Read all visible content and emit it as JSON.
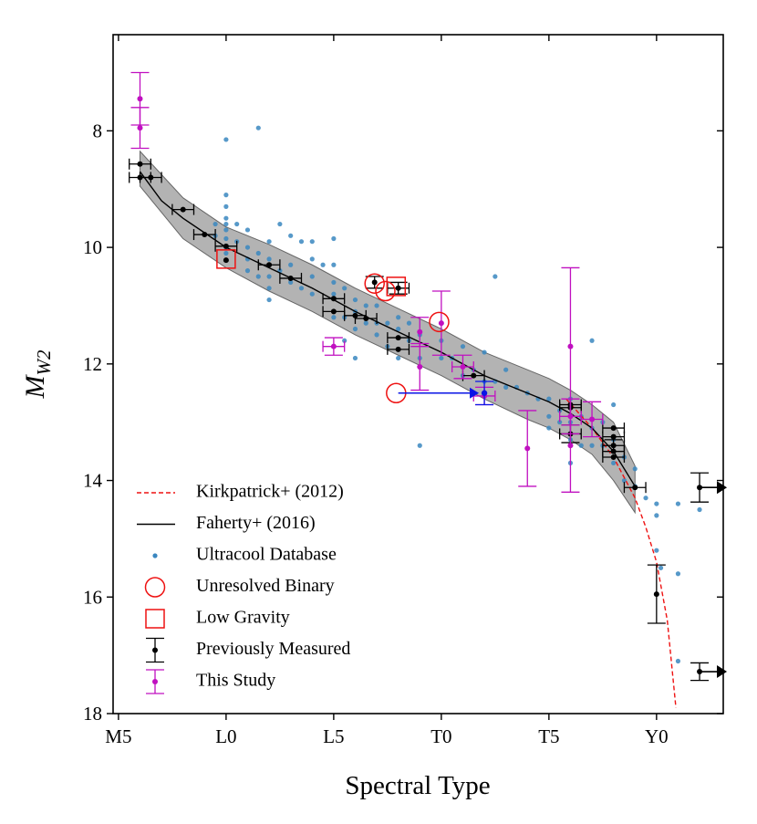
{
  "chart_data": {
    "type": "scatter",
    "xlabel": "Spectral Type",
    "ylabel": {
      "text": "M",
      "sub": "W2"
    },
    "xlim": [
      4.75,
      33.1
    ],
    "ylim": [
      18,
      6.35
    ],
    "xticks": [
      {
        "value": 5,
        "label": "M5"
      },
      {
        "value": 10,
        "label": "L0"
      },
      {
        "value": 15,
        "label": "L5"
      },
      {
        "value": 20,
        "label": "T0"
      },
      {
        "value": 25,
        "label": "T5"
      },
      {
        "value": 30,
        "label": "Y0"
      }
    ],
    "yticks": [
      8,
      10,
      12,
      14,
      16,
      18
    ],
    "legend": "lower left",
    "band": {
      "color": "#999999",
      "x": [
        6,
        8,
        10,
        12,
        14,
        16,
        18,
        20,
        22,
        24,
        25,
        26,
        27,
        28,
        29
      ],
      "lower": [
        8.35,
        9.15,
        9.65,
        9.95,
        10.3,
        10.7,
        11.05,
        11.4,
        11.8,
        12.1,
        12.25,
        12.45,
        12.7,
        13.0,
        13.75
      ],
      "upper": [
        8.95,
        9.85,
        10.35,
        10.75,
        11.1,
        11.5,
        11.85,
        12.2,
        12.6,
        12.95,
        13.1,
        13.3,
        13.55,
        14.0,
        14.55
      ]
    },
    "series": [
      {
        "name": "Kirkpatrick+ (2012)",
        "kind": "line",
        "dashed": true,
        "color": "#ee1111",
        "x": [
          25.8,
          27,
          28,
          29,
          29.5,
          30,
          30.5,
          30.9
        ],
        "y": [
          12.6,
          13.1,
          13.6,
          14.3,
          14.8,
          15.4,
          16.4,
          17.9
        ]
      },
      {
        "name": "Faherty+ (2016)",
        "kind": "line",
        "dashed": false,
        "color": "#000000",
        "x": [
          6,
          7,
          8,
          9,
          10,
          12,
          14,
          16,
          18,
          20,
          22,
          24,
          25,
          26,
          27,
          28,
          29
        ],
        "y": [
          8.7,
          9.2,
          9.5,
          9.75,
          10.0,
          10.35,
          10.7,
          11.1,
          11.45,
          11.8,
          12.2,
          12.5,
          12.65,
          12.85,
          13.1,
          13.5,
          14.1
        ]
      },
      {
        "name": "Ultracool Database",
        "kind": "dots",
        "color": "#3a87c0",
        "x": [
          10,
          11.5,
          10,
          10,
          10,
          10,
          10,
          10,
          10,
          10,
          10.5,
          10.5,
          11,
          11,
          11,
          11,
          11.5,
          11.5,
          12,
          12,
          12,
          12,
          12,
          12.5,
          12.5,
          13,
          13,
          13,
          13.5,
          13.5,
          14,
          14,
          14,
          14,
          14.5,
          15,
          15,
          15,
          15,
          15,
          15.5,
          15.5,
          15.5,
          16,
          16,
          16,
          16,
          16.5,
          16.5,
          17,
          17,
          17,
          17.5,
          17.5,
          18,
          18,
          18,
          18.5,
          18.5,
          19,
          19,
          19,
          20,
          20,
          20.5,
          21,
          21,
          21.5,
          22,
          22,
          22.5,
          22.5,
          23,
          23,
          23.5,
          24,
          24.5,
          25,
          25,
          25,
          25.5,
          25.5,
          26,
          26,
          26,
          26,
          26.5,
          26.5,
          27,
          27,
          27,
          27.5,
          27.5,
          28,
          28,
          28,
          28.5,
          28.5,
          29,
          29,
          29.5,
          30,
          30,
          30,
          30.2,
          31,
          31,
          32,
          31,
          9.5,
          9.5
        ],
        "y": [
          8.15,
          7.95,
          9.1,
          9.3,
          9.5,
          9.6,
          9.7,
          9.85,
          10.0,
          10.1,
          9.6,
          9.9,
          9.7,
          10,
          10.2,
          10.4,
          10.1,
          10.5,
          9.9,
          10.2,
          10.5,
          10.7,
          10.9,
          9.6,
          10.4,
          9.8,
          10.3,
          10.6,
          9.9,
          10.7,
          9.9,
          10.2,
          10.5,
          10.8,
          10.3,
          9.85,
          10.3,
          10.6,
          10.8,
          11.2,
          10.7,
          11.2,
          11.6,
          10.9,
          11.1,
          11.4,
          11.9,
          11.0,
          11.3,
          11.0,
          11.3,
          11.5,
          11.3,
          11.7,
          11.2,
          11.4,
          11.9,
          11.3,
          11.6,
          11.5,
          11.9,
          13.4,
          11.6,
          11.9,
          11.9,
          11.7,
          12.2,
          12.1,
          12.3,
          11.8,
          10.5,
          12.3,
          12.1,
          12.4,
          12.4,
          12.5,
          12.6,
          12.6,
          12.9,
          13.1,
          12.8,
          13.0,
          12.6,
          13.0,
          13.3,
          13.7,
          12.9,
          13.4,
          11.6,
          13.1,
          13.4,
          13.0,
          13.4,
          12.7,
          13.3,
          13.7,
          13.6,
          14.0,
          13.8,
          14.1,
          14.3,
          14.4,
          14.6,
          15.2,
          15.5,
          14.4,
          15.6,
          14.5,
          17.1,
          9.6,
          9.8
        ]
      },
      {
        "name": "Unresolved Binary",
        "kind": "circle",
        "color": "#ee1111",
        "x": [
          16.9,
          17.4,
          19.9,
          17.9
        ],
        "y": [
          10.62,
          10.75,
          11.28,
          12.5
        ]
      },
      {
        "name": "Low Gravity",
        "kind": "square",
        "color": "#ee1111",
        "x": [
          10,
          17.9
        ],
        "y": [
          10.2,
          10.67
        ]
      },
      {
        "name": "Previously Measured",
        "kind": "errorbar",
        "color": "#000000",
        "x": [
          6,
          6,
          6.5,
          8,
          9,
          10,
          10,
          12,
          13,
          15,
          15,
          16,
          16.5,
          16.9,
          18,
          18,
          18,
          21.5,
          26,
          26,
          26,
          28,
          28,
          28,
          28,
          28,
          29,
          30,
          32,
          32
        ],
        "y": [
          8.57,
          8.8,
          8.8,
          9.35,
          9.78,
          9.98,
          10.22,
          10.3,
          10.53,
          10.88,
          11.1,
          11.17,
          11.22,
          10.6,
          10.7,
          11.55,
          11.75,
          12.2,
          12.7,
          12.75,
          13.2,
          13.1,
          13.25,
          13.4,
          13.5,
          13.6,
          14.12,
          15.95,
          14.12,
          17.28
        ],
        "xerr": [
          0.5,
          0.5,
          0.5,
          0.5,
          0.5,
          0.5,
          null,
          0.5,
          0.5,
          0.5,
          0.5,
          0.5,
          0.5,
          null,
          0.5,
          0.5,
          0.5,
          0.5,
          0.5,
          0.5,
          0.5,
          0.5,
          0.5,
          0.5,
          0.5,
          0.5,
          0.5,
          null,
          null,
          null
        ],
        "yerr": [
          null,
          null,
          null,
          null,
          null,
          null,
          null,
          null,
          null,
          null,
          null,
          null,
          null,
          0.1,
          0.1,
          null,
          null,
          null,
          null,
          null,
          0.15,
          null,
          null,
          0.1,
          null,
          null,
          null,
          0.5,
          0.25,
          0.15
        ],
        "x_lower_limit": [
          false,
          false,
          false,
          false,
          false,
          false,
          false,
          false,
          false,
          false,
          false,
          false,
          false,
          false,
          false,
          false,
          false,
          false,
          false,
          false,
          false,
          false,
          false,
          false,
          false,
          false,
          false,
          false,
          true,
          true
        ]
      },
      {
        "name": "This Study",
        "kind": "errorbar",
        "color": "#c010c0",
        "x": [
          6,
          6,
          15,
          19,
          19,
          20,
          21,
          22,
          24,
          26,
          26,
          26,
          27
        ],
        "y": [
          7.45,
          7.95,
          11.7,
          11.45,
          12.05,
          11.3,
          12.05,
          12.55,
          13.45,
          11.7,
          12.9,
          13.4,
          12.95
        ],
        "xerr": [
          null,
          null,
          0.5,
          null,
          null,
          null,
          0.5,
          0.5,
          null,
          null,
          0.5,
          null,
          0.5
        ],
        "yerr": [
          0.45,
          0.35,
          0.15,
          0.25,
          0.4,
          0.55,
          0.2,
          0.15,
          0.65,
          1.35,
          0.3,
          0.8,
          0.3
        ]
      }
    ],
    "shift": {
      "color": "#0a14e6",
      "from_x": 18,
      "to_x": 22,
      "y": 12.5,
      "yerr": 0.2
    }
  }
}
